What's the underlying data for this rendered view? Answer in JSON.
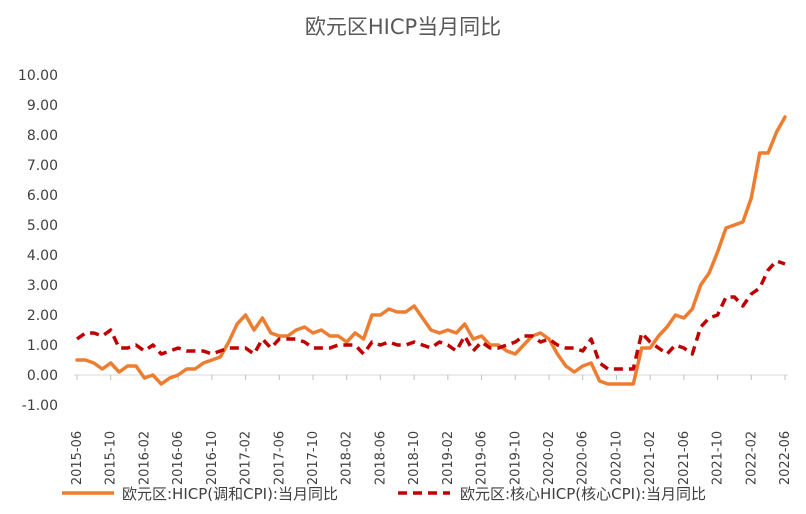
{
  "chart_data": {
    "type": "line",
    "title": "欧元区HICP当月同比",
    "xlabel": "",
    "ylabel": "",
    "ylim": [
      -1,
      10
    ],
    "yticks": [
      -1,
      0,
      1,
      2,
      3,
      4,
      5,
      6,
      7,
      8,
      9,
      10
    ],
    "ytick_labels": [
      "-1.00",
      "0.00",
      "1.00",
      "2.00",
      "3.00",
      "4.00",
      "5.00",
      "6.00",
      "7.00",
      "8.00",
      "9.00",
      "10.00"
    ],
    "x": [
      "2015-06",
      "2015-07",
      "2015-08",
      "2015-09",
      "2015-10",
      "2015-11",
      "2015-12",
      "2016-01",
      "2016-02",
      "2016-03",
      "2016-04",
      "2016-05",
      "2016-06",
      "2016-07",
      "2016-08",
      "2016-09",
      "2016-10",
      "2016-11",
      "2016-12",
      "2017-01",
      "2017-02",
      "2017-03",
      "2017-04",
      "2017-05",
      "2017-06",
      "2017-07",
      "2017-08",
      "2017-09",
      "2017-10",
      "2017-11",
      "2017-12",
      "2018-01",
      "2018-02",
      "2018-03",
      "2018-04",
      "2018-05",
      "2018-06",
      "2018-07",
      "2018-08",
      "2018-09",
      "2018-10",
      "2018-11",
      "2018-12",
      "2019-01",
      "2019-02",
      "2019-03",
      "2019-04",
      "2019-05",
      "2019-06",
      "2019-07",
      "2019-08",
      "2019-09",
      "2019-10",
      "2019-11",
      "2019-12",
      "2020-01",
      "2020-02",
      "2020-03",
      "2020-04",
      "2020-05",
      "2020-06",
      "2020-07",
      "2020-08",
      "2020-09",
      "2020-10",
      "2020-11",
      "2020-12",
      "2021-01",
      "2021-02",
      "2021-03",
      "2021-04",
      "2021-05",
      "2021-06",
      "2021-07",
      "2021-08",
      "2021-09",
      "2021-10",
      "2021-11",
      "2021-12",
      "2022-01",
      "2022-02",
      "2022-03",
      "2022-04",
      "2022-05",
      "2022-06"
    ],
    "xtick_labels": [
      "2015-06",
      "2015-10",
      "2016-02",
      "2016-06",
      "2016-10",
      "2017-02",
      "2017-06",
      "2017-10",
      "2018-02",
      "2018-06",
      "2018-10",
      "2019-02",
      "2019-06",
      "2019-10",
      "2020-02",
      "2020-06",
      "2020-10",
      "2021-02",
      "2021-06",
      "2021-10",
      "2022-02",
      "2022-06"
    ],
    "series": [
      {
        "name": "欧元区:HICP(调和CPI):当月同比",
        "color": "#ED7D31",
        "style": "solid",
        "values": [
          0.5,
          0.5,
          0.4,
          0.2,
          0.4,
          0.1,
          0.3,
          0.3,
          -0.1,
          0.0,
          -0.3,
          -0.1,
          0.0,
          0.2,
          0.2,
          0.4,
          0.5,
          0.6,
          1.1,
          1.7,
          2.0,
          1.5,
          1.9,
          1.4,
          1.3,
          1.3,
          1.5,
          1.6,
          1.4,
          1.5,
          1.3,
          1.3,
          1.1,
          1.4,
          1.2,
          2.0,
          2.0,
          2.2,
          2.1,
          2.1,
          2.3,
          1.9,
          1.5,
          1.4,
          1.5,
          1.4,
          1.7,
          1.2,
          1.3,
          1.0,
          1.0,
          0.8,
          0.7,
          1.0,
          1.3,
          1.4,
          1.2,
          0.7,
          0.3,
          0.1,
          0.3,
          0.4,
          -0.2,
          -0.3,
          -0.3,
          -0.3,
          -0.3,
          0.9,
          0.9,
          1.3,
          1.6,
          2.0,
          1.9,
          2.2,
          3.0,
          3.4,
          4.1,
          4.9,
          5.0,
          5.1,
          5.9,
          7.4,
          7.4,
          8.1,
          8.6
        ]
      },
      {
        "name": "欧元区:核心HICP(核心CPI):当月同比",
        "color": "#C00000",
        "style": "dashed",
        "values": [
          1.2,
          1.4,
          1.4,
          1.3,
          1.5,
          0.9,
          0.9,
          1.0,
          0.8,
          1.0,
          0.7,
          0.8,
          0.9,
          0.8,
          0.8,
          0.8,
          0.7,
          0.8,
          0.9,
          0.9,
          0.9,
          0.7,
          1.2,
          0.9,
          1.2,
          1.2,
          1.2,
          1.1,
          0.9,
          0.9,
          0.9,
          1.0,
          1.0,
          1.0,
          0.7,
          1.1,
          1.0,
          1.1,
          1.0,
          1.0,
          1.1,
          1.0,
          0.9,
          1.1,
          1.0,
          0.8,
          1.3,
          0.8,
          1.1,
          0.9,
          0.9,
          1.0,
          1.1,
          1.3,
          1.3,
          1.1,
          1.2,
          1.0,
          0.9,
          0.9,
          0.8,
          1.2,
          0.4,
          0.2,
          0.2,
          0.2,
          0.2,
          1.4,
          1.1,
          0.9,
          0.7,
          1.0,
          0.9,
          0.7,
          1.6,
          1.9,
          2.0,
          2.6,
          2.6,
          2.3,
          2.7,
          2.9,
          3.5,
          3.8,
          3.7
        ]
      }
    ],
    "legend_position": "bottom",
    "grid": false
  }
}
